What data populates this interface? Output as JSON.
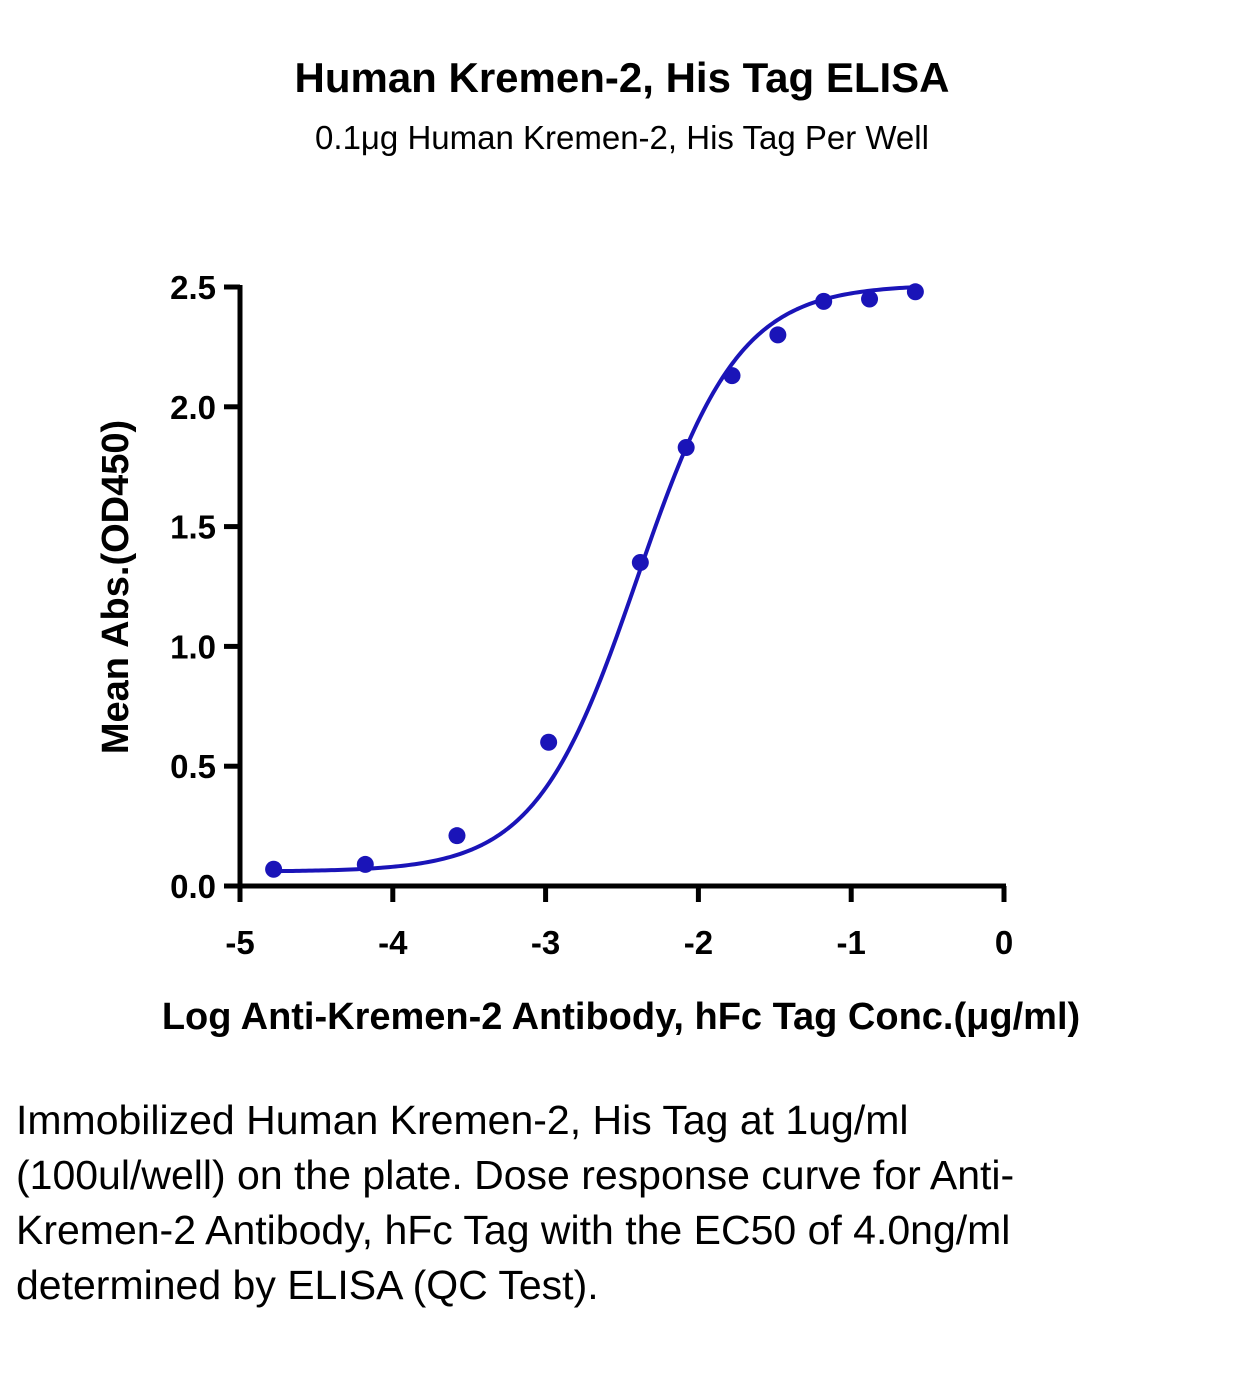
{
  "chart_data": {
    "type": "scatter",
    "title": "Human Kremen-2, His Tag ELISA",
    "subtitle": "0.1μg Human Kremen-2, His Tag Per Well",
    "xlabel": "Log Anti-Kremen-2 Antibody, hFc Tag Conc.(μg/ml)",
    "ylabel": "Mean Abs.(OD450)",
    "xlim": [
      -5,
      0
    ],
    "ylim": [
      0,
      2.5
    ],
    "xticks": [
      "-5",
      "-4",
      "-3",
      "-2",
      "-1",
      "0"
    ],
    "yticks": [
      "0.0",
      "0.5",
      "1.0",
      "1.5",
      "2.0",
      "2.5"
    ],
    "grid": false,
    "color": "#1a14b8",
    "points": {
      "x": [
        -4.78,
        -4.18,
        -3.58,
        -2.98,
        -2.38,
        -2.08,
        -1.78,
        -1.48,
        -1.18,
        -0.88,
        -0.58
      ],
      "y": [
        0.07,
        0.09,
        0.21,
        0.6,
        1.35,
        1.83,
        2.13,
        2.3,
        2.44,
        2.45,
        2.48
      ]
    },
    "fit": {
      "model": "4PL",
      "bottom": 0.06,
      "top": 2.51,
      "log_ec50": -2.4,
      "hill": 1.3
    }
  },
  "caption": "Immobilized Human Kremen-2, His Tag at 1ug/ml (100ul/well) on the plate. Dose response curve for Anti-Kremen-2 Antibody, hFc Tag with the EC50 of 4.0ng/ml determined by ELISA (QC Test)."
}
